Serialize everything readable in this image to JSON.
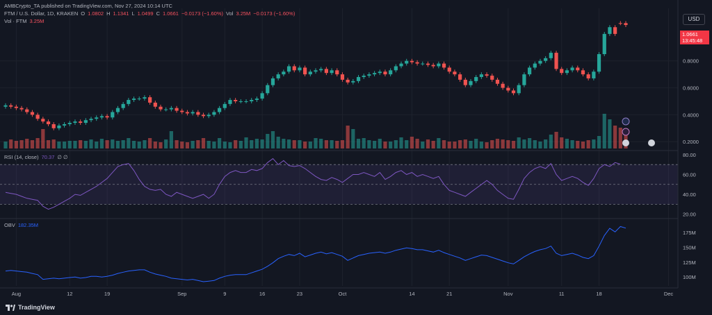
{
  "header": {
    "published": "AMBCrypto_TA published on TradingView.com, Nov 27, 2024 10:14 UTC",
    "symbol": "FTM / U.S. Dollar, 1D, KRAKEN",
    "ohlc": {
      "o_label": "O",
      "o": "1.0802",
      "h_label": "H",
      "h": "1.1341",
      "l_label": "L",
      "l": "1.0499",
      "c_label": "C",
      "c": "1.0661",
      "change": "−0.0173 (−1.60%)",
      "vol_label": "Vol",
      "vol": "3.25M",
      "vol_change": "−0.0173 (−1.60%)"
    },
    "volume_label": "Vol · FTM",
    "volume_value": "3.25M"
  },
  "currency": "USD",
  "last_price": "1.0661",
  "countdown": "13:45:48",
  "rsi": {
    "label": "RSI (14, close)",
    "value": "70.37",
    "extra": "∅ ∅"
  },
  "obv": {
    "label": "OBV",
    "value": "182.35M"
  },
  "branding": "TradingView",
  "colors": {
    "up": "#26a69a",
    "down": "#ef5350",
    "rsi": "#7e57c2",
    "obv": "#2962ff",
    "bg": "#131722"
  },
  "chart_data": [
    {
      "type": "candlestick",
      "title": "FTM / U.S. Dollar, 1D, KRAKEN",
      "y_axis_ticks": [
        "0.2000",
        "0.4000",
        "0.6000",
        "0.8000"
      ],
      "ylim": [
        0.16,
        1.19
      ],
      "x_axis_ticks": [
        {
          "label": "Aug",
          "day": 2
        },
        {
          "label": "12",
          "day": 12
        },
        {
          "label": "19",
          "day": 19
        },
        {
          "label": "Sep",
          "day": 33
        },
        {
          "label": "9",
          "day": 41
        },
        {
          "label": "16",
          "day": 48
        },
        {
          "label": "23",
          "day": 55
        },
        {
          "label": "Oct",
          "day": 63
        },
        {
          "label": "14",
          "day": 76
        },
        {
          "label": "21",
          "day": 83
        },
        {
          "label": "Nov",
          "day": 94
        },
        {
          "label": "11",
          "day": 104
        },
        {
          "label": "18",
          "day": 111
        },
        {
          "label": "Dec",
          "day": 124
        }
      ],
      "series": {
        "close": [
          0.47,
          0.46,
          0.45,
          0.44,
          0.42,
          0.4,
          0.37,
          0.35,
          0.33,
          0.3,
          0.32,
          0.33,
          0.34,
          0.35,
          0.34,
          0.36,
          0.37,
          0.38,
          0.39,
          0.38,
          0.42,
          0.45,
          0.48,
          0.51,
          0.52,
          0.52,
          0.53,
          0.49,
          0.46,
          0.44,
          0.44,
          0.45,
          0.43,
          0.42,
          0.41,
          0.42,
          0.4,
          0.39,
          0.4,
          0.42,
          0.45,
          0.48,
          0.51,
          0.5,
          0.5,
          0.5,
          0.51,
          0.52,
          0.56,
          0.62,
          0.67,
          0.7,
          0.72,
          0.76,
          0.73,
          0.75,
          0.7,
          0.72,
          0.73,
          0.74,
          0.71,
          0.73,
          0.7,
          0.66,
          0.64,
          0.65,
          0.68,
          0.69,
          0.7,
          0.71,
          0.72,
          0.7,
          0.73,
          0.76,
          0.78,
          0.8,
          0.79,
          0.78,
          0.78,
          0.77,
          0.76,
          0.78,
          0.75,
          0.72,
          0.7,
          0.66,
          0.62,
          0.65,
          0.68,
          0.7,
          0.69,
          0.66,
          0.63,
          0.6,
          0.58,
          0.56,
          0.62,
          0.7,
          0.75,
          0.78,
          0.8,
          0.82,
          0.86,
          0.74,
          0.71,
          0.73,
          0.75,
          0.73,
          0.7,
          0.67,
          0.72,
          0.85,
          1.0,
          1.05,
          1.0,
          1.08,
          1.0661
        ],
        "open": [
          0.46,
          0.47,
          0.46,
          0.45,
          0.44,
          0.42,
          0.4,
          0.37,
          0.35,
          0.33,
          0.3,
          0.32,
          0.33,
          0.34,
          0.35,
          0.34,
          0.36,
          0.37,
          0.38,
          0.39,
          0.38,
          0.42,
          0.45,
          0.48,
          0.51,
          0.52,
          0.52,
          0.53,
          0.49,
          0.46,
          0.44,
          0.44,
          0.45,
          0.43,
          0.42,
          0.41,
          0.42,
          0.4,
          0.39,
          0.4,
          0.42,
          0.45,
          0.48,
          0.51,
          0.5,
          0.5,
          0.5,
          0.51,
          0.52,
          0.56,
          0.62,
          0.67,
          0.7,
          0.72,
          0.76,
          0.73,
          0.75,
          0.7,
          0.72,
          0.73,
          0.74,
          0.71,
          0.73,
          0.7,
          0.66,
          0.64,
          0.65,
          0.68,
          0.69,
          0.7,
          0.71,
          0.72,
          0.7,
          0.73,
          0.76,
          0.78,
          0.8,
          0.79,
          0.78,
          0.78,
          0.77,
          0.76,
          0.78,
          0.75,
          0.72,
          0.7,
          0.66,
          0.62,
          0.65,
          0.68,
          0.7,
          0.69,
          0.66,
          0.63,
          0.6,
          0.58,
          0.56,
          0.62,
          0.7,
          0.75,
          0.78,
          0.8,
          0.82,
          0.86,
          0.74,
          0.71,
          0.73,
          0.75,
          0.73,
          0.7,
          0.67,
          0.72,
          0.85,
          1.0,
          1.05,
          1.0802,
          1.0802
        ],
        "volume": [
          1.0,
          1.3,
          1.1,
          1.2,
          1.4,
          1.2,
          1.5,
          2.8,
          1.2,
          1.3,
          1.0,
          1.0,
          1.1,
          1.1,
          1.2,
          1.1,
          1.3,
          1.0,
          1.4,
          1.2,
          1.3,
          1.1,
          1.2,
          1.5,
          1.1,
          1.0,
          1.2,
          1.5,
          1.0,
          0.9,
          1.3,
          2.5,
          1.2,
          1.0,
          0.9,
          1.1,
          1.2,
          1.5,
          1.1,
          1.0,
          1.5,
          1.0,
          0.9,
          1.2,
          1.1,
          1.6,
          1.2,
          1.4,
          1.3,
          2.1,
          2.5,
          1.7,
          1.4,
          1.3,
          1.2,
          1.2,
          1.0,
          1.0,
          1.5,
          1.4,
          1.2,
          1.2,
          1.1,
          1.2,
          3.3,
          2.8,
          1.4,
          1.5,
          1.2,
          1.1,
          1.4,
          1.0,
          1.0,
          1.2,
          1.6,
          1.2,
          1.7,
          1.4,
          1.0,
          1.3,
          1.1,
          1.5,
          1.2,
          1.0,
          1.0,
          1.2,
          1.3,
          1.1,
          1.4,
          1.0,
          0.9,
          1.2,
          1.4,
          1.3,
          1.2,
          1.1,
          1.6,
          1.3,
          1.5,
          1.2,
          1.0,
          1.3,
          2.0,
          2.4,
          1.6,
          1.4,
          1.2,
          1.1,
          1.0,
          1.2,
          1.3,
          1.8,
          5.0,
          4.2,
          3.3,
          3.0,
          2.7
        ]
      }
    },
    {
      "type": "line",
      "title": "RSI (14, close)",
      "y_axis_ticks": [
        "20.00",
        "40.00",
        "60.00",
        "80.00"
      ],
      "ylim": [
        17,
        82
      ],
      "bands": [
        30,
        50,
        70
      ],
      "series": [
        {
          "name": "RSI",
          "values": [
            42,
            41,
            40,
            38,
            36,
            35,
            34,
            28,
            25,
            27,
            30,
            33,
            36,
            40,
            39,
            42,
            45,
            48,
            52,
            56,
            62,
            68,
            70,
            71,
            64,
            55,
            48,
            45,
            44,
            45,
            40,
            38,
            42,
            40,
            38,
            36,
            38,
            40,
            36,
            40,
            50,
            58,
            62,
            64,
            62,
            62,
            65,
            64,
            66,
            72,
            76,
            70,
            74,
            69,
            68,
            69,
            66,
            62,
            58,
            55,
            54,
            57,
            55,
            52,
            56,
            60,
            60,
            62,
            60,
            58,
            62,
            55,
            58,
            62,
            64,
            60,
            62,
            58,
            60,
            58,
            56,
            58,
            50,
            44,
            42,
            40,
            38,
            42,
            46,
            50,
            54,
            50,
            44,
            40,
            36,
            35,
            45,
            56,
            62,
            66,
            68,
            66,
            71,
            60,
            54,
            56,
            58,
            56,
            52,
            49,
            56,
            66,
            70,
            68,
            72,
            70.37
          ]
        }
      ]
    },
    {
      "type": "line",
      "title": "OBV",
      "y_axis_ticks": [
        "100M",
        "125M",
        "150M",
        "175M"
      ],
      "ylim": [
        85,
        195
      ],
      "series": [
        {
          "name": "OBV",
          "values": [
            110,
            111,
            110,
            109,
            108,
            106,
            104,
            96,
            97,
            98,
            97,
            98,
            99,
            100,
            98,
            99,
            101,
            101,
            100,
            101,
            103,
            106,
            108,
            110,
            111,
            112,
            112,
            108,
            105,
            103,
            101,
            98,
            97,
            96,
            95,
            96,
            94,
            92,
            93,
            94,
            98,
            101,
            103,
            104,
            104,
            104,
            107,
            110,
            113,
            118,
            124,
            131,
            135,
            138,
            136,
            140,
            134,
            137,
            140,
            142,
            139,
            141,
            138,
            135,
            128,
            132,
            136,
            138,
            140,
            141,
            142,
            140,
            142,
            145,
            147,
            149,
            148,
            146,
            146,
            144,
            142,
            145,
            141,
            138,
            135,
            132,
            128,
            131,
            134,
            137,
            136,
            133,
            130,
            127,
            124,
            122,
            128,
            134,
            139,
            143,
            146,
            148,
            152,
            140,
            136,
            138,
            140,
            137,
            133,
            131,
            136,
            152,
            170,
            182,
            176,
            185,
            182.35
          ]
        }
      ]
    }
  ]
}
